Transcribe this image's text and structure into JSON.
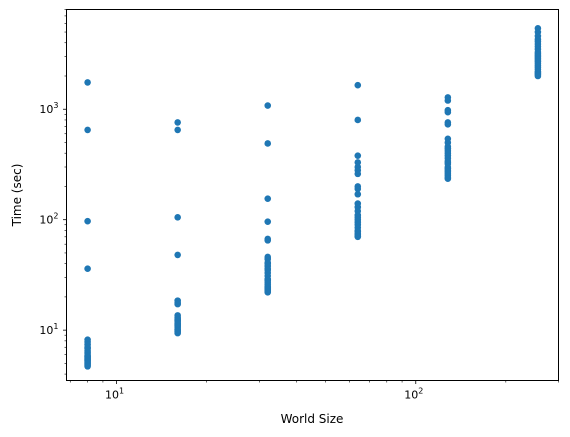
{
  "chart_data": {
    "type": "scatter",
    "xlabel": "World Size",
    "ylabel": "Time (sec)",
    "xscale": "log",
    "yscale": "log",
    "xlim": [
      6.8,
      300
    ],
    "ylim": [
      3.5,
      8000
    ],
    "grid": false,
    "marker_color": "#1f77b4",
    "x_ticks": [
      {
        "value": 10,
        "base": "10",
        "exp": "1"
      },
      {
        "value": 100,
        "base": "10",
        "exp": "2"
      }
    ],
    "y_ticks": [
      {
        "value": 10,
        "base": "10",
        "exp": "1"
      },
      {
        "value": 100,
        "base": "10",
        "exp": "2"
      },
      {
        "value": 1000,
        "base": "10",
        "exp": "3"
      }
    ],
    "series": [
      {
        "x": [
          8,
          8,
          8,
          8,
          8,
          8,
          8,
          8,
          8,
          8,
          8,
          8,
          8,
          8,
          8,
          8,
          8,
          8,
          8,
          8,
          8,
          8,
          8,
          8,
          8,
          16,
          16,
          16,
          16,
          16,
          16,
          16,
          16,
          16,
          16,
          16,
          16,
          16,
          16,
          16,
          16,
          16,
          16,
          16,
          16,
          16,
          16,
          16,
          32,
          32,
          32,
          32,
          32,
          32,
          32,
          32,
          32,
          32,
          32,
          32,
          32,
          32,
          32,
          32,
          32,
          32,
          32,
          32,
          32,
          32,
          32,
          32,
          32,
          32,
          32,
          64,
          64,
          64,
          64,
          64,
          64,
          64,
          64,
          64,
          64,
          64,
          64,
          64,
          64,
          64,
          64,
          64,
          64,
          64,
          64,
          64,
          64,
          64,
          64,
          64,
          128,
          128,
          128,
          128,
          128,
          128,
          128,
          128,
          128,
          128,
          128,
          128,
          128,
          128,
          128,
          128,
          128,
          128,
          128,
          128,
          128,
          128,
          128,
          128,
          128,
          256,
          256,
          256,
          256,
          256,
          256,
          256,
          256,
          256,
          256,
          256,
          256,
          256,
          256,
          256,
          256,
          256,
          256,
          256,
          256,
          256,
          256,
          256,
          256
        ],
        "y": [
          1750,
          650,
          97,
          36,
          8.2,
          7.8,
          7.4,
          7.0,
          6.8,
          6.5,
          6.3,
          6.1,
          5.9,
          5.8,
          5.7,
          5.6,
          5.5,
          5.4,
          5.3,
          5.2,
          5.1,
          5.0,
          4.9,
          4.8,
          4.7,
          760,
          650,
          105,
          48,
          18.5,
          17.8,
          17.2,
          13.6,
          13.0,
          12.6,
          12.2,
          11.9,
          11.6,
          11.3,
          11.0,
          10.8,
          10.5,
          10.2,
          10.0,
          9.7,
          9.4,
          12.4,
          11.4,
          1080,
          490,
          155,
          96,
          67,
          65,
          46,
          44,
          41,
          38,
          36,
          35,
          33,
          31,
          29,
          28,
          27,
          26,
          25,
          24.5,
          24,
          23.5,
          23,
          22.5,
          22,
          40,
          28.5,
          1650,
          800,
          380,
          330,
          300,
          280,
          260,
          200,
          190,
          170,
          140,
          130,
          120,
          110,
          105,
          100,
          95,
          90,
          85,
          80,
          78,
          75,
          73,
          71,
          70,
          1280,
          1200,
          980,
          940,
          760,
          730,
          540,
          500,
          460,
          440,
          420,
          400,
          380,
          360,
          340,
          330,
          320,
          300,
          290,
          280,
          270,
          260,
          250,
          240,
          235,
          5400,
          5000,
          4600,
          4300,
          4100,
          3900,
          3700,
          3500,
          3300,
          3200,
          3100,
          3000,
          2900,
          2800,
          2700,
          2600,
          2500,
          2400,
          2300,
          2200,
          2150,
          2100,
          2050,
          2000
        ]
      }
    ]
  }
}
